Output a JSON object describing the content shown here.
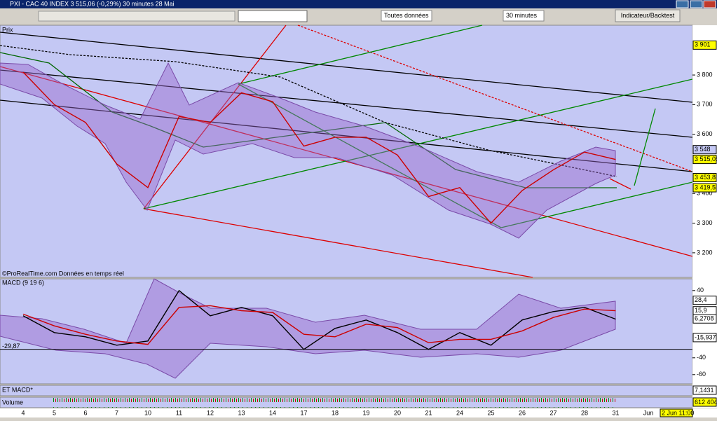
{
  "window": {
    "title": "PXI - CAC 40 INDEX   3 515,06 (-0,29%)   30 minutes 28 Mai"
  },
  "toolbar": {
    "data_dropdown": "Toutes données",
    "period_dropdown": "30 minutes",
    "button": "Indicateur/Backtest"
  },
  "chart_data": [
    {
      "type": "line",
      "panel": "Prix",
      "credit": "©ProRealTime.com  Données en temps réel",
      "categories": [
        "4",
        "5",
        "6",
        "7",
        "10",
        "11",
        "12",
        "13",
        "14",
        "17",
        "18",
        "19",
        "20",
        "21",
        "24",
        "25",
        "26",
        "27",
        "28",
        "31"
      ],
      "axis_extra": [
        "Jun",
        "2 Jun 11:00"
      ],
      "values": [
        3810,
        3700,
        3640,
        3500,
        3420,
        3660,
        3640,
        3740,
        3710,
        3560,
        3590,
        3590,
        3530,
        3390,
        3420,
        3300,
        3410,
        3480,
        3540,
        3515
      ],
      "color": "#cc0000",
      "ylim": [
        3117,
        3968
      ],
      "yticks": [
        {
          "value": 3200,
          "label": "3 200"
        },
        {
          "value": 3300,
          "label": "3 300"
        },
        {
          "value": 3400,
          "label": "3 400"
        },
        {
          "value": 3600,
          "label": "3 600"
        },
        {
          "value": 3700,
          "label": "3 700"
        },
        {
          "value": 3800,
          "label": "3 800"
        }
      ],
      "price_labels": [
        {
          "value": 3901,
          "label": "3 901"
        },
        {
          "value": 3548,
          "label": "3 548"
        },
        {
          "value": 3515.06,
          "label": "3 515,06"
        },
        {
          "value": 3453.8,
          "label": "3 453,8"
        },
        {
          "value": 3419.5,
          "label": "3 419,5"
        }
      ]
    },
    {
      "type": "line",
      "panel": "MACD (9 19 6)",
      "series": [
        {
          "color": "#000000",
          "values": [
            10,
            -10,
            -15,
            -25,
            -20,
            40,
            10,
            20,
            10,
            -30,
            -5,
            5,
            -10,
            -30,
            -10,
            -25,
            5,
            15,
            20,
            6
          ]
        },
        {
          "color": "#cc0000",
          "values": [
            12,
            -2,
            -12,
            -20,
            -24,
            20,
            22,
            16,
            14,
            -12,
            -15,
            0,
            -4,
            -22,
            -18,
            -18,
            -8,
            8,
            18,
            16
          ]
        }
      ],
      "ylim": [
        -71,
        54
      ],
      "yticks": [
        40,
        -40,
        -60
      ],
      "level": {
        "value": -29.87,
        "label": "-29,87"
      },
      "value_labels": [
        {
          "value": 28.4,
          "label": "28,4"
        },
        {
          "value": 15.9,
          "label": "15,9"
        },
        {
          "value": 6.2708,
          "label": "6,2708"
        },
        {
          "value": -15.937,
          "label": "-15,937"
        }
      ]
    },
    {
      "type": "indicator",
      "panel": "ET MACD*",
      "value": 7.1431,
      "label": "7,1431"
    },
    {
      "type": "indicator",
      "panel": "Volume",
      "value": 612404,
      "label": "612 404"
    }
  ]
}
